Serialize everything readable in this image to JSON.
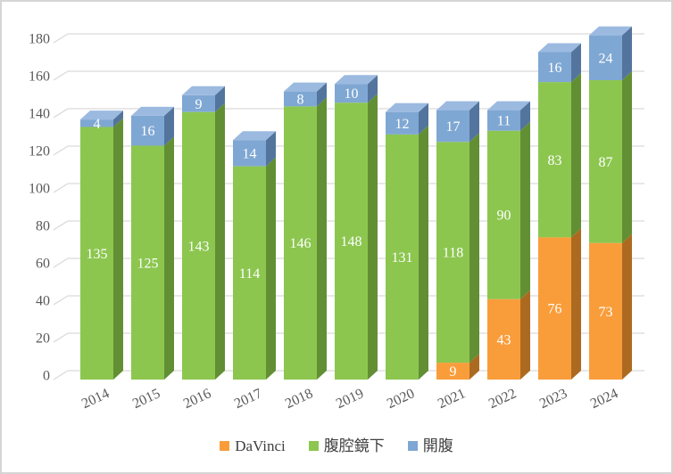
{
  "chart_data": {
    "type": "bar",
    "subtype": "3d-stacked-column",
    "title": "",
    "xlabel": "",
    "ylabel": "",
    "categories": [
      "2014",
      "2015",
      "2016",
      "2017",
      "2018",
      "2019",
      "2020",
      "2021",
      "2022",
      "2023",
      "2024"
    ],
    "series": [
      {
        "name": "DaVinci",
        "color": "#f99d3b",
        "side_color": "#ac6a21",
        "top_color": "#fbb871",
        "values": [
          0,
          0,
          0,
          0,
          0,
          0,
          0,
          9,
          43,
          76,
          73
        ]
      },
      {
        "name": "腹腔鏡下",
        "color": "#8cc64f",
        "side_color": "#628f33",
        "top_color": "#aeda80",
        "values": [
          135,
          125,
          143,
          114,
          146,
          148,
          131,
          118,
          90,
          83,
          87
        ]
      },
      {
        "name": "開腹",
        "color": "#7fa7d3",
        "side_color": "#53759d",
        "top_color": "#9cbae0",
        "values": [
          4,
          16,
          9,
          14,
          8,
          10,
          12,
          17,
          11,
          16,
          24
        ]
      }
    ],
    "ylim": [
      0,
      180
    ],
    "ytick_step": 20,
    "yticks": [
      0,
      20,
      40,
      60,
      80,
      100,
      120,
      140,
      160,
      180
    ],
    "grid": true,
    "gridline_color": "#d9d9d9",
    "axis_text_color": "#595959",
    "data_labels": true,
    "data_label_color": "#ffffff",
    "legend_position": "bottom"
  }
}
